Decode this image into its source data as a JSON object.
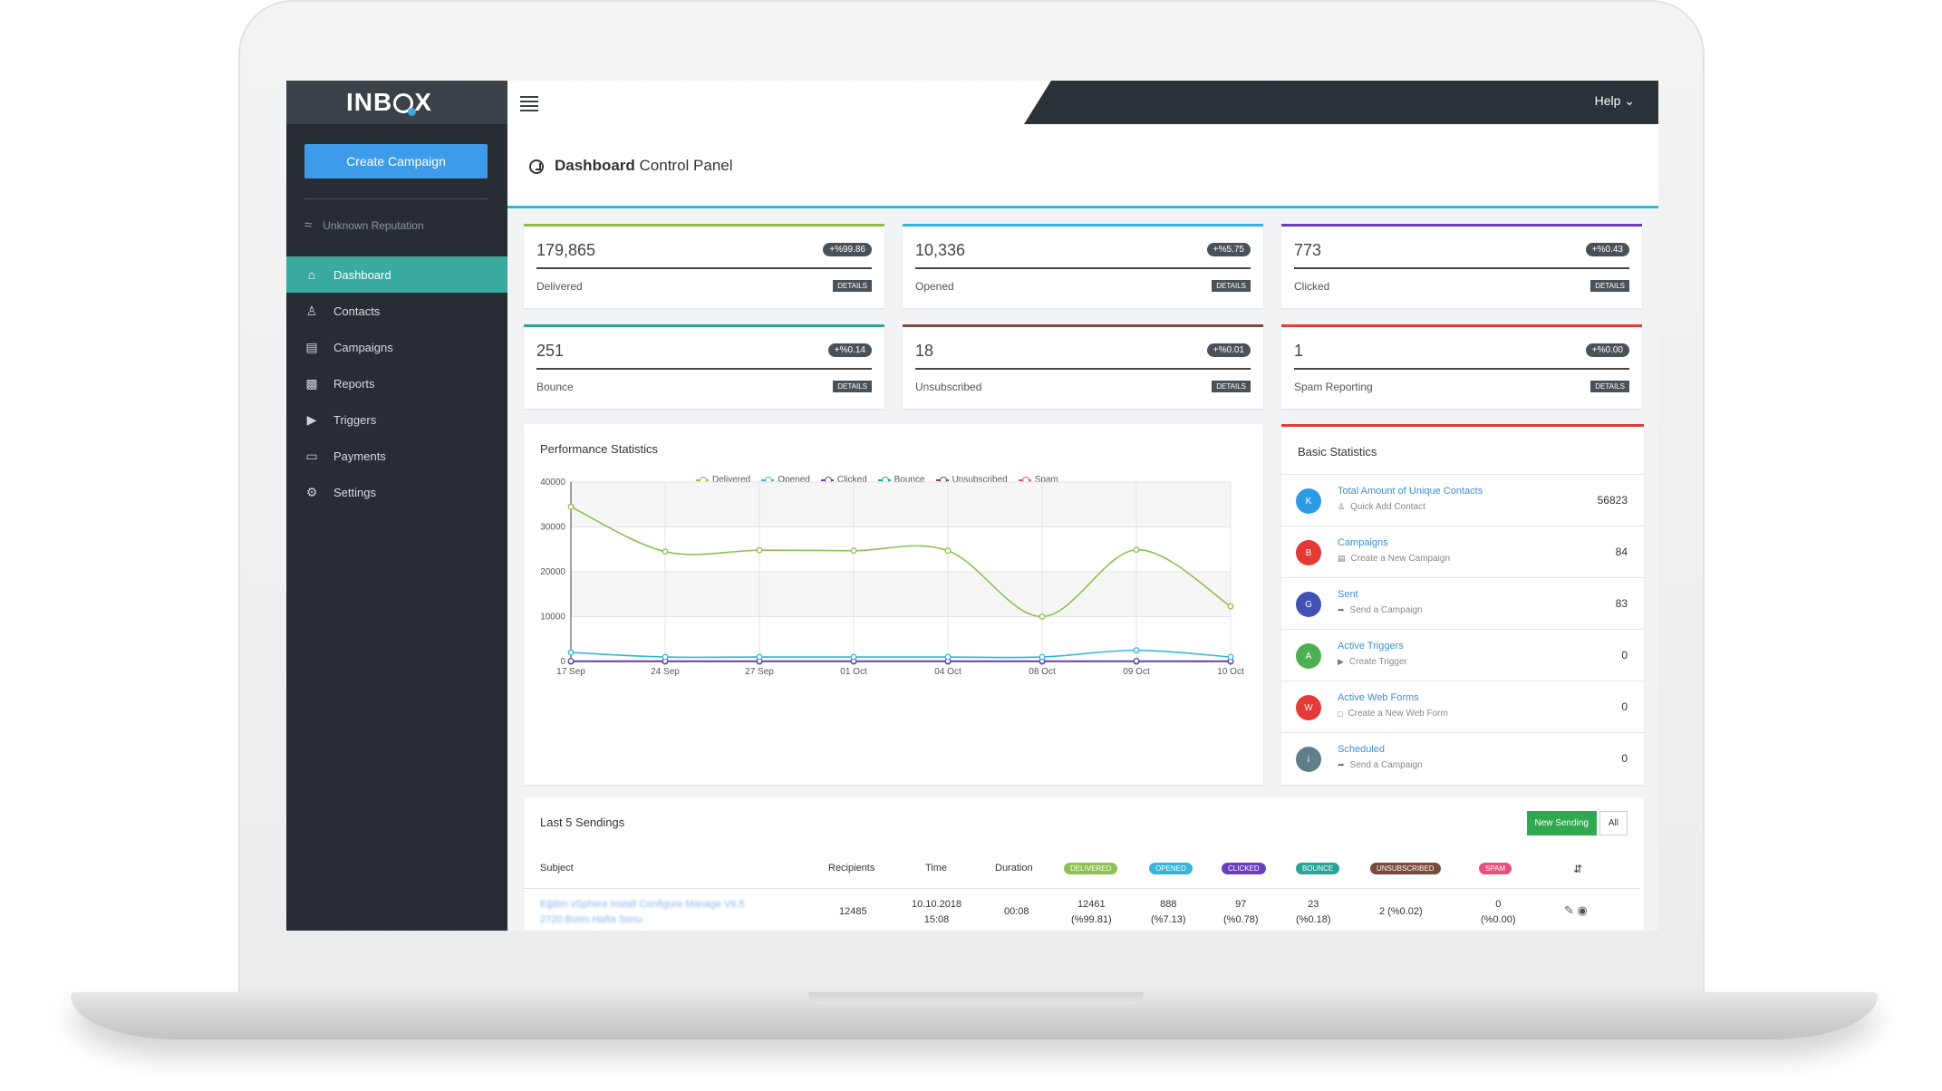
{
  "app": {
    "logo_left": "INB",
    "logo_right": "X",
    "help_label": "Help"
  },
  "sidebar": {
    "create_label": "Create Campaign",
    "reputation": "Unknown Reputation",
    "items": [
      {
        "label": "Dashboard",
        "icon": "home-icon"
      },
      {
        "label": "Contacts",
        "icon": "contacts-icon"
      },
      {
        "label": "Campaigns",
        "icon": "campaigns-icon"
      },
      {
        "label": "Reports",
        "icon": "reports-icon"
      },
      {
        "label": "Triggers",
        "icon": "triggers-icon"
      },
      {
        "label": "Payments",
        "icon": "payments-icon"
      },
      {
        "label": "Settings",
        "icon": "gear-icon"
      }
    ]
  },
  "header": {
    "title_bold": "Dashboard",
    "title_rest": " Control Panel"
  },
  "stats": [
    {
      "value": "179,865",
      "pct": "+%99.86",
      "label": "Delivered",
      "color": "#8cc152",
      "details": "DETAILS"
    },
    {
      "value": "10,336",
      "pct": "+%5.75",
      "label": "Opened",
      "color": "#36b5d8",
      "details": "DETAILS"
    },
    {
      "value": "773",
      "pct": "+%0.43",
      "label": "Clicked",
      "color": "#6a3fbf",
      "details": "DETAILS"
    },
    {
      "value": "251",
      "pct": "+%0.14",
      "label": "Bounce",
      "color": "#2aa39a",
      "details": "DETAILS"
    },
    {
      "value": "18",
      "pct": "+%0.01",
      "label": "Unsubscribed",
      "color": "#7a4b3a",
      "details": "DETAILS"
    },
    {
      "value": "1",
      "pct": "+%0.00",
      "label": "Spam Reporting",
      "color": "#e53935",
      "details": "DETAILS"
    }
  ],
  "performance": {
    "title": "Performance Statistics"
  },
  "chart_data": {
    "type": "line",
    "title": "Performance Statistics",
    "categories": [
      "17 Sep",
      "24 Sep",
      "27 Sep",
      "01 Oct",
      "04 Oct",
      "08 Oct",
      "09 Oct",
      "10 Oct"
    ],
    "ylim": [
      0,
      40000
    ],
    "yticks": [
      0,
      10000,
      20000,
      30000,
      40000
    ],
    "legend_position": "top",
    "grid": true,
    "series": [
      {
        "name": "Delivered",
        "color": "#8cc152",
        "values": [
          34500,
          24500,
          24800,
          24700,
          24700,
          10000,
          24900,
          12300
        ]
      },
      {
        "name": "Opened",
        "color": "#36b5d8",
        "values": [
          2000,
          1000,
          1000,
          1000,
          1000,
          1000,
          2500,
          1000
        ]
      },
      {
        "name": "Clicked",
        "color": "#6a3fbf",
        "values": [
          100,
          100,
          100,
          100,
          100,
          100,
          100,
          100
        ]
      },
      {
        "name": "Bounce",
        "color": "#2aa39a",
        "values": [
          50,
          50,
          50,
          50,
          50,
          50,
          50,
          50
        ]
      },
      {
        "name": "Unsubscribed",
        "color": "#7a4b3a",
        "values": [
          0,
          0,
          0,
          0,
          0,
          0,
          0,
          0
        ]
      },
      {
        "name": "Spam",
        "color": "#e8507a",
        "values": [
          0,
          0,
          0,
          0,
          0,
          0,
          0,
          0
        ]
      }
    ]
  },
  "basic": {
    "title": "Basic Statistics",
    "rows": [
      {
        "initial": "K",
        "color": "#2c9be6",
        "name": "Total Amount of Unique Contacts",
        "sub": "Quick Add Contact",
        "value": "56823"
      },
      {
        "initial": "B",
        "color": "#e53935",
        "name": "Campaigns",
        "sub": "Create a New Campaign",
        "value": "84"
      },
      {
        "initial": "G",
        "color": "#3f51b5",
        "name": "Sent",
        "sub": "Send a Campaign",
        "value": "83"
      },
      {
        "initial": "A",
        "color": "#4caf50",
        "name": "Active Triggers",
        "sub": "Create Trigger",
        "value": "0"
      },
      {
        "initial": "W",
        "color": "#e53935",
        "name": "Active Web Forms",
        "sub": "Create a New Web Form",
        "value": "0"
      },
      {
        "initial": "i",
        "color": "#607d8b",
        "name": "Scheduled",
        "sub": "Send a Campaign",
        "value": "0"
      }
    ]
  },
  "sendings": {
    "title": "Last 5 Sendings",
    "new_label": "New Sending",
    "all_label": "All",
    "headers": {
      "subject": "Subject",
      "recipients": "Recipients",
      "time": "Time",
      "duration": "Duration",
      "delivered": "DELIVERED",
      "opened": "OPENED",
      "clicked": "CLICKED",
      "bounce": "BOUNCE",
      "unsubscribed": "UNSUBSCRIBED",
      "spam": "SPAM"
    },
    "row": {
      "subject_line1": "Eğitim vSphere Install Configure Manage V6.5",
      "subject_line2": "2720 Bizim Hafta Sonu",
      "recipients": "12485",
      "date": "10.10.2018",
      "time": "15:08",
      "duration": "00:08",
      "delivered": "12461",
      "delivered_pct": "(%99.81)",
      "opened": "888",
      "opened_pct": "(%7.13)",
      "clicked": "97",
      "clicked_pct": "(%0.78)",
      "bounce": "23",
      "bounce_pct": "(%0.18)",
      "unsubscribed": "2 (%0.02)",
      "spam": "0",
      "spam_pct": "(%0.00)"
    }
  }
}
